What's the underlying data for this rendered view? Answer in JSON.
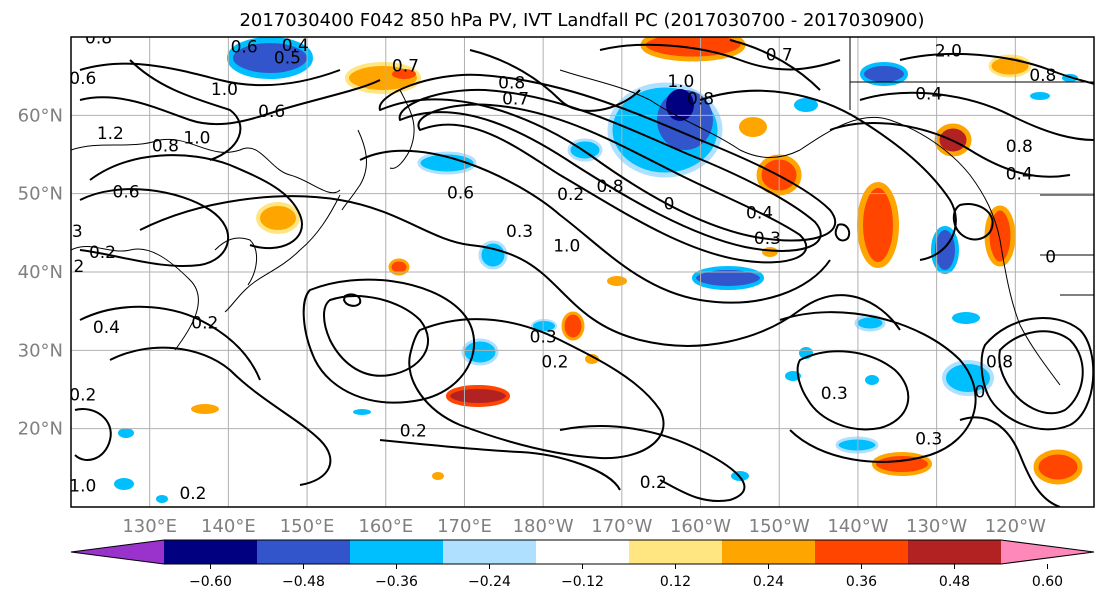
{
  "title": "2017030400 F042 850 hPa PV, IVT Landfall PC (2017030700 - 2017030900)",
  "map": {
    "projection": "PlateCarree",
    "lon_range_east": [
      120,
      250
    ],
    "lat_range": [
      10,
      70
    ],
    "gridlines": true,
    "coastlines": true,
    "borders": true
  },
  "lat_ticks": [
    {
      "value": 60,
      "label": "60°N"
    },
    {
      "value": 50,
      "label": "50°N"
    },
    {
      "value": 40,
      "label": "40°N"
    },
    {
      "value": 30,
      "label": "30°N"
    },
    {
      "value": 20,
      "label": "20°N"
    }
  ],
  "lon_ticks": [
    {
      "value": 130,
      "label": "130°E"
    },
    {
      "value": 140,
      "label": "140°E"
    },
    {
      "value": 150,
      "label": "150°E"
    },
    {
      "value": 160,
      "label": "160°E"
    },
    {
      "value": 170,
      "label": "170°E"
    },
    {
      "value": 180,
      "label": "180°W"
    },
    {
      "value": 190,
      "label": "170°W"
    },
    {
      "value": 200,
      "label": "160°W"
    },
    {
      "value": 210,
      "label": "150°W"
    },
    {
      "value": 220,
      "label": "140°W"
    },
    {
      "value": 230,
      "label": "130°W"
    },
    {
      "value": 240,
      "label": "120°W"
    }
  ],
  "colorbar": {
    "extend": "both",
    "levels": [
      -0.72,
      -0.6,
      -0.48,
      -0.36,
      -0.24,
      -0.12,
      0.12,
      0.24,
      0.36,
      0.48,
      0.6,
      0.72
    ],
    "colors": [
      "#9933cc",
      "#000080",
      "#3355cc",
      "#00bfff",
      "#b0e0ff",
      "#ffffff",
      "#ffe680",
      "#ffa500",
      "#ff4500",
      "#b22222",
      "#ff88bb"
    ],
    "tick_labels": [
      "-0.60",
      "-0.48",
      "-0.36",
      "-0.24",
      "-0.12",
      "0.12",
      "0.24",
      "0.36",
      "0.48",
      "0.60"
    ]
  },
  "contour_labels": [
    {
      "text": "0.8",
      "lon": 123.5,
      "lat": 69.2
    },
    {
      "text": "0.6",
      "lon": 121.5,
      "lat": 64.0
    },
    {
      "text": "0.6",
      "lon": 142.0,
      "lat": 68.0
    },
    {
      "text": "0.4",
      "lon": 148.5,
      "lat": 68.2
    },
    {
      "text": "0.5",
      "lon": 147.5,
      "lat": 66.6
    },
    {
      "text": "1.0",
      "lon": 139.5,
      "lat": 62.6
    },
    {
      "text": "0.6",
      "lon": 145.5,
      "lat": 59.8
    },
    {
      "text": "0.8",
      "lon": 132.0,
      "lat": 55.4
    },
    {
      "text": "1.0",
      "lon": 136.0,
      "lat": 56.4
    },
    {
      "text": "1.2",
      "lon": 125.0,
      "lat": 57.0
    },
    {
      "text": "0.6",
      "lon": 127.0,
      "lat": 49.5
    },
    {
      "text": "3",
      "lon": 120.8,
      "lat": 44.5
    },
    {
      "text": "0.2",
      "lon": 124.0,
      "lat": 41.8
    },
    {
      "text": "2",
      "lon": 121.0,
      "lat": 40.0
    },
    {
      "text": "0.4",
      "lon": 124.5,
      "lat": 32.2
    },
    {
      "text": "0.2",
      "lon": 137.0,
      "lat": 32.8
    },
    {
      "text": "0.2",
      "lon": 121.5,
      "lat": 23.6
    },
    {
      "text": "1.0",
      "lon": 121.5,
      "lat": 12.0
    },
    {
      "text": "0.2",
      "lon": 135.5,
      "lat": 11.0
    },
    {
      "text": "0.2",
      "lon": 163.5,
      "lat": 19.0
    },
    {
      "text": "0.2",
      "lon": 194.0,
      "lat": 12.4
    },
    {
      "text": "0.3",
      "lon": 180.0,
      "lat": 31.0
    },
    {
      "text": "0.2",
      "lon": 181.5,
      "lat": 27.8
    },
    {
      "text": "0.3",
      "lon": 217.0,
      "lat": 23.8
    },
    {
      "text": "0.3",
      "lon": 229.0,
      "lat": 18.0
    },
    {
      "text": "0",
      "lon": 235.5,
      "lat": 24.0
    },
    {
      "text": "0.8",
      "lon": 238.0,
      "lat": 27.8
    },
    {
      "text": "0.7",
      "lon": 162.5,
      "lat": 65.6
    },
    {
      "text": "0.8",
      "lon": 176.0,
      "lat": 63.4
    },
    {
      "text": "0.7",
      "lon": 176.5,
      "lat": 61.4
    },
    {
      "text": "1.0",
      "lon": 197.5,
      "lat": 63.6
    },
    {
      "text": "0.8",
      "lon": 200.0,
      "lat": 61.4
    },
    {
      "text": "0.7",
      "lon": 210.0,
      "lat": 67.0
    },
    {
      "text": "0.6",
      "lon": 169.5,
      "lat": 49.4
    },
    {
      "text": "0.2",
      "lon": 183.5,
      "lat": 49.2
    },
    {
      "text": "0.8",
      "lon": 188.5,
      "lat": 50.2
    },
    {
      "text": "0.3",
      "lon": 177.0,
      "lat": 44.5
    },
    {
      "text": "0.3",
      "lon": 208.5,
      "lat": 43.6
    },
    {
      "text": "0.4",
      "lon": 207.5,
      "lat": 46.8
    },
    {
      "text": "1.0",
      "lon": 183.0,
      "lat": 42.6
    },
    {
      "text": "0",
      "lon": 196.0,
      "lat": 48.0
    },
    {
      "text": "2.0",
      "lon": 231.5,
      "lat": 67.5
    },
    {
      "text": "0.8",
      "lon": 243.5,
      "lat": 64.4
    },
    {
      "text": "0.4",
      "lon": 229.0,
      "lat": 62.0
    },
    {
      "text": "0.8",
      "lon": 240.5,
      "lat": 55.3
    },
    {
      "text": "0.4",
      "lon": 240.5,
      "lat": 51.8
    },
    {
      "text": "0",
      "lon": 244.5,
      "lat": 41.2
    }
  ]
}
